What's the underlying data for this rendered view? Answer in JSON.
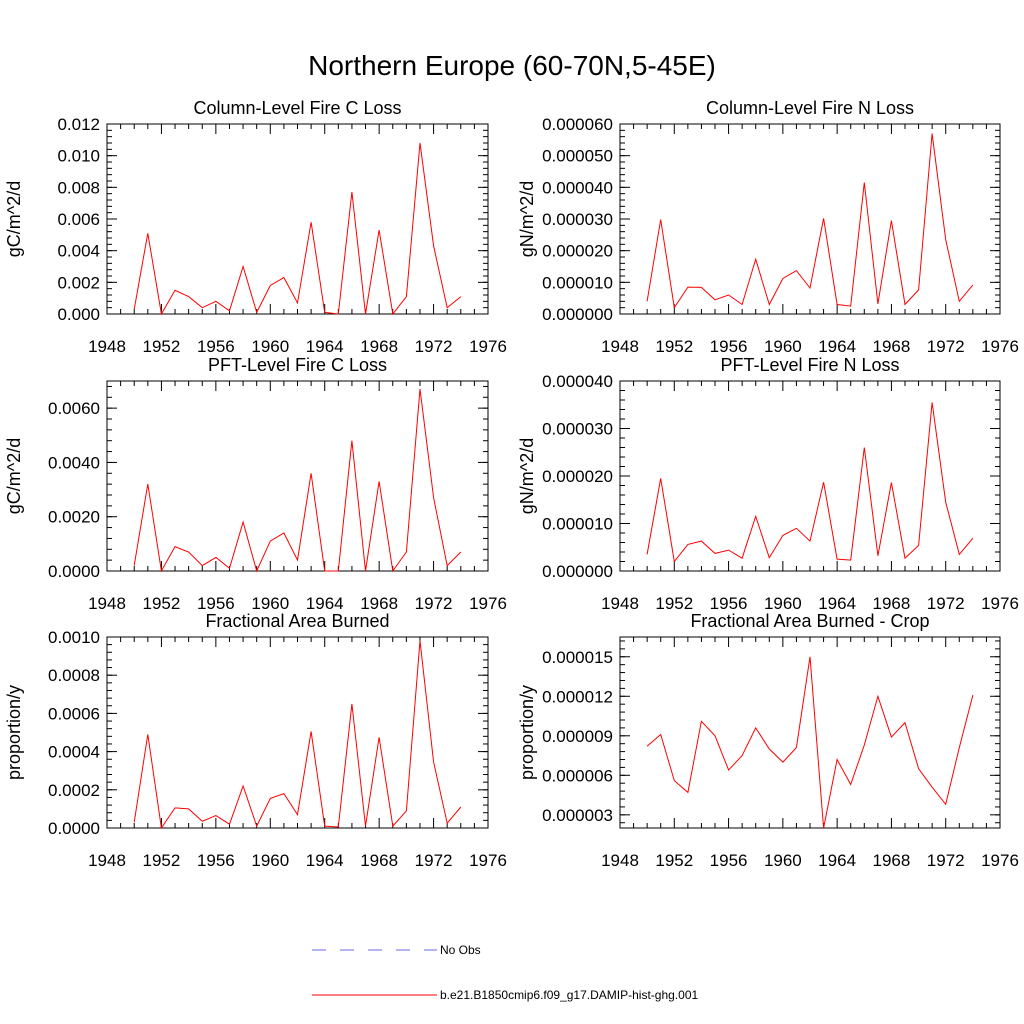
{
  "figure_title": "Northern Europe (60-70N,5-45E)",
  "legend": {
    "items": [
      {
        "label": "No Obs",
        "color": "#6a6ae8",
        "style": "dashed"
      },
      {
        "label": "b.e21.B1850cmip6.f09_g17.DAMIP-hist-ghg.001",
        "color": "#ff0000",
        "style": "solid"
      }
    ]
  },
  "chart_data": [
    {
      "type": "line",
      "title": "Column-Level Fire C Loss",
      "ylabel": "gC/m^2/d",
      "xlim": [
        1948,
        1976
      ],
      "xticks": [
        "1948",
        "1952",
        "1956",
        "1960",
        "1964",
        "1968",
        "1972",
        "1976"
      ],
      "ylim": [
        0,
        0.012
      ],
      "yticks": [
        "0.000",
        "0.002",
        "0.004",
        "0.006",
        "0.008",
        "0.010",
        "0.012"
      ],
      "x": [
        1950,
        1951,
        1952,
        1953,
        1954,
        1955,
        1956,
        1957,
        1958,
        1959,
        1960,
        1961,
        1962,
        1963,
        1964,
        1965,
        1966,
        1967,
        1968,
        1969,
        1970,
        1971,
        1972,
        1973,
        1974
      ],
      "series": [
        {
          "color": "#ff0000",
          "values": [
            0.0003,
            0.0051,
            0.0,
            0.0015,
            0.0011,
            0.0004,
            0.0008,
            0.0002,
            0.003,
            0.0001,
            0.0018,
            0.0023,
            0.0007,
            0.0058,
            0.0001,
            0.0,
            0.0077,
            0.0,
            0.0053,
            0.0,
            0.0011,
            0.0108,
            0.0043,
            0.0004,
            0.0011
          ]
        }
      ]
    },
    {
      "type": "line",
      "title": "Column-Level Fire N Loss",
      "ylabel": "gN/m^2/d",
      "xlim": [
        1948,
        1976
      ],
      "xticks": [
        "1948",
        "1952",
        "1956",
        "1960",
        "1964",
        "1968",
        "1972",
        "1976"
      ],
      "ylim": [
        0,
        6e-05
      ],
      "yticks": [
        "0.000000",
        "0.000010",
        "0.000020",
        "0.000030",
        "0.000040",
        "0.000050",
        "0.000060"
      ],
      "x": [
        1950,
        1951,
        1952,
        1953,
        1954,
        1955,
        1956,
        1957,
        1958,
        1959,
        1960,
        1961,
        1962,
        1963,
        1964,
        1965,
        1966,
        1967,
        1968,
        1969,
        1970,
        1971,
        1972,
        1973,
        1974
      ],
      "series": [
        {
          "color": "#ff0000",
          "values": [
            4e-06,
            2.98e-05,
            2e-06,
            8.5e-06,
            8.4e-06,
            4.5e-06,
            6e-06,
            3e-06,
            1.73e-05,
            3e-06,
            1.12e-05,
            1.37e-05,
            8.2e-06,
            3.02e-05,
            3e-06,
            2.5e-06,
            4.15e-05,
            3.2e-06,
            2.95e-05,
            3e-06,
            7.6e-06,
            5.7e-05,
            2.35e-05,
            4e-06,
            9.2e-06
          ]
        }
      ]
    },
    {
      "type": "line",
      "title": "PFT-Level Fire C Loss",
      "ylabel": "gC/m^2/d",
      "xlim": [
        1948,
        1976
      ],
      "xticks": [
        "1948",
        "1952",
        "1956",
        "1960",
        "1964",
        "1968",
        "1972",
        "1976"
      ],
      "ylim": [
        0,
        0.007
      ],
      "yticks": [
        "0.0000",
        "0.0020",
        "0.0040",
        "0.0060"
      ],
      "ytick_values": [
        0,
        0.002,
        0.004,
        0.006
      ],
      "x": [
        1950,
        1951,
        1952,
        1953,
        1954,
        1955,
        1956,
        1957,
        1958,
        1959,
        1960,
        1961,
        1962,
        1963,
        1964,
        1965,
        1966,
        1967,
        1968,
        1969,
        1970,
        1971,
        1972,
        1973,
        1974
      ],
      "series": [
        {
          "color": "#ff0000",
          "values": [
            0.0002,
            0.0032,
            0.0,
            0.0009,
            0.0007,
            0.0002,
            0.0005,
            0.0001,
            0.0018,
            0.0,
            0.0011,
            0.0014,
            0.0004,
            0.0036,
            0.0,
            0.0,
            0.0048,
            0.0,
            0.0033,
            0.0,
            0.0007,
            0.0067,
            0.0027,
            0.0002,
            0.0007
          ]
        }
      ]
    },
    {
      "type": "line",
      "title": "PFT-Level Fire N Loss",
      "ylabel": "gN/m^2/d",
      "xlim": [
        1948,
        1976
      ],
      "xticks": [
        "1948",
        "1952",
        "1956",
        "1960",
        "1964",
        "1968",
        "1972",
        "1976"
      ],
      "ylim": [
        0,
        4e-05
      ],
      "yticks": [
        "0.000000",
        "0.000010",
        "0.000020",
        "0.000030",
        "0.000040"
      ],
      "x": [
        1950,
        1951,
        1952,
        1953,
        1954,
        1955,
        1956,
        1957,
        1958,
        1959,
        1960,
        1961,
        1962,
        1963,
        1964,
        1965,
        1966,
        1967,
        1968,
        1969,
        1970,
        1971,
        1972,
        1973,
        1974
      ],
      "series": [
        {
          "color": "#ff0000",
          "values": [
            3.5e-06,
            1.95e-05,
            2e-06,
            5.6e-06,
            6.3e-06,
            3.7e-06,
            4.4e-06,
            2.7e-06,
            1.15e-05,
            2.8e-06,
            7.5e-06,
            9e-06,
            6.3e-06,
            1.87e-05,
            2.5e-06,
            2.3e-06,
            2.6e-05,
            3.2e-06,
            1.86e-05,
            2.7e-06,
            5.4e-06,
            3.55e-05,
            1.45e-05,
            3.5e-06,
            6.9e-06
          ]
        }
      ]
    },
    {
      "type": "line",
      "title": "Fractional Area Burned",
      "ylabel": "proportion/y",
      "xlim": [
        1948,
        1976
      ],
      "xticks": [
        "1948",
        "1952",
        "1956",
        "1960",
        "1964",
        "1968",
        "1972",
        "1976"
      ],
      "ylim": [
        0,
        0.001
      ],
      "yticks": [
        "0.0000",
        "0.0002",
        "0.0004",
        "0.0006",
        "0.0008",
        "0.0010"
      ],
      "x": [
        1950,
        1951,
        1952,
        1953,
        1954,
        1955,
        1956,
        1957,
        1958,
        1959,
        1960,
        1961,
        1962,
        1963,
        1964,
        1965,
        1966,
        1967,
        1968,
        1969,
        1970,
        1971,
        1972,
        1973,
        1974
      ],
      "series": [
        {
          "color": "#ff0000",
          "values": [
            3e-05,
            0.00049,
            0.0,
            0.000105,
            0.0001,
            3.5e-05,
            6.5e-05,
            2e-05,
            0.00022,
            1e-05,
            0.000155,
            0.00018,
            7e-05,
            0.000505,
            1e-05,
            5e-06,
            0.00065,
            1e-05,
            0.000475,
            1e-05,
            9e-05,
            0.00098,
            0.000345,
            2.5e-05,
            0.00011
          ]
        }
      ]
    },
    {
      "type": "line",
      "title": "Fractional Area Burned - Crop",
      "ylabel": "proportion/y",
      "xlim": [
        1948,
        1976
      ],
      "xticks": [
        "1948",
        "1952",
        "1956",
        "1960",
        "1964",
        "1968",
        "1972",
        "1976"
      ],
      "ylim": [
        2e-06,
        1.65e-05
      ],
      "yticks": [
        "0.000003",
        "0.000006",
        "0.000009",
        "0.000012",
        "0.000015"
      ],
      "ytick_values": [
        3e-06,
        6e-06,
        9e-06,
        1.2e-05,
        1.5e-05
      ],
      "x": [
        1950,
        1951,
        1952,
        1953,
        1954,
        1955,
        1956,
        1957,
        1958,
        1959,
        1960,
        1961,
        1962,
        1963,
        1964,
        1965,
        1966,
        1967,
        1968,
        1969,
        1970,
        1971,
        1972,
        1973,
        1974
      ],
      "series": [
        {
          "color": "#ff0000",
          "values": [
            8.2e-06,
            9.1e-06,
            5.6e-06,
            4.7e-06,
            1.01e-05,
            9e-06,
            6.4e-06,
            7.5e-06,
            9.6e-06,
            8e-06,
            7e-06,
            8.1e-06,
            1.5e-05,
            2e-06,
            7.2e-06,
            5.3e-06,
            8.3e-06,
            1.2e-05,
            8.9e-06,
            1e-05,
            6.5e-06,
            5.1e-06,
            3.8e-06,
            8.1e-06,
            1.21e-05
          ]
        }
      ]
    }
  ]
}
